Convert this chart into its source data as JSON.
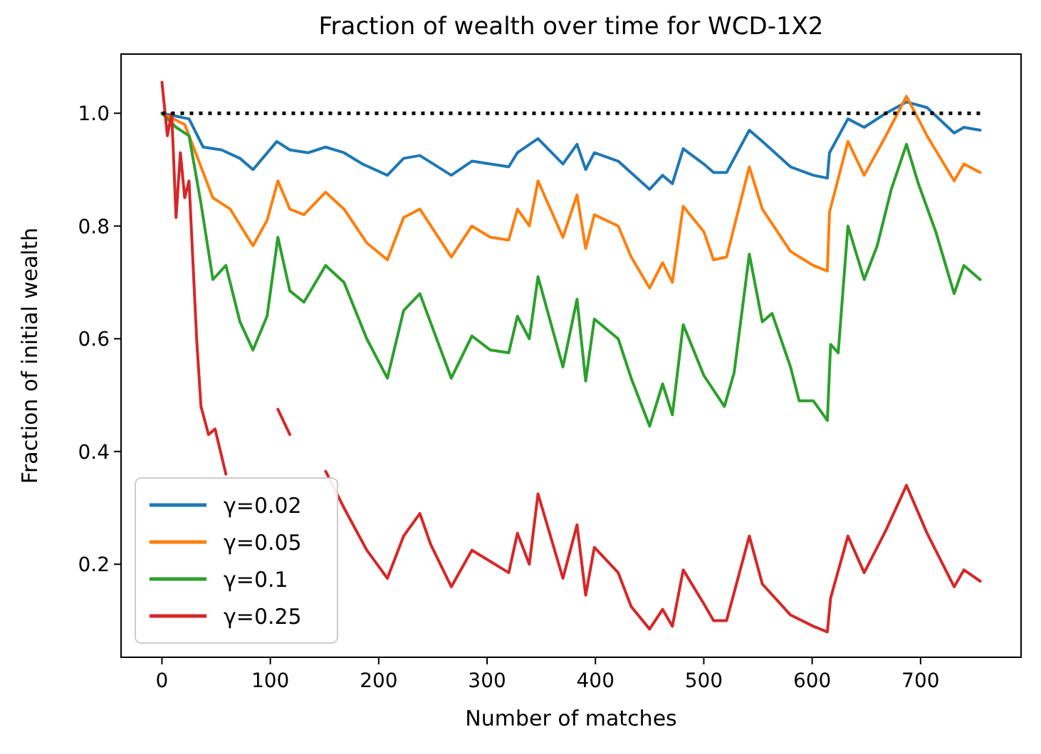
{
  "chart_data": {
    "type": "line",
    "title": "Fraction of wealth over time for WCD-1X2",
    "xlabel": "Number of matches",
    "ylabel": "Fraction of initial wealth",
    "xlim": [
      -37.75,
      792.75
    ],
    "xticks": [
      0,
      100,
      200,
      300,
      400,
      500,
      600,
      700
    ],
    "ylim": [
      0.035,
      1.105
    ],
    "yticks": [
      {
        "value": 0.2,
        "label": "0.2"
      },
      {
        "value": 0.4,
        "label": "0.4"
      },
      {
        "value": 0.6,
        "label": "0.6"
      },
      {
        "value": 0.8,
        "label": "0.8"
      },
      {
        "value": 1.0,
        "label": "1.0"
      }
    ],
    "grid": false,
    "legend": "bottom left",
    "line_style": "solid",
    "marker": "none",
    "series": [
      {
        "name": "γ=0.02",
        "color": "#1f77b4",
        "x": [
          0,
          25,
          38,
          55,
          72,
          84,
          106,
          118,
          135,
          151,
          168,
          185,
          208,
          223,
          238,
          267,
          286,
          320,
          328,
          347,
          370,
          383,
          391,
          399,
          421,
          450,
          462,
          471,
          481,
          500,
          509,
          521,
          542,
          554,
          580,
          601,
          614,
          616,
          633,
          648,
          668,
          687,
          706,
          731,
          740,
          755
        ],
        "values": [
          1.0,
          0.99,
          0.94,
          0.935,
          0.92,
          0.9,
          0.95,
          0.935,
          0.93,
          0.94,
          0.93,
          0.91,
          0.89,
          0.92,
          0.925,
          0.89,
          0.915,
          0.905,
          0.93,
          0.955,
          0.91,
          0.945,
          0.9,
          0.93,
          0.915,
          0.865,
          0.89,
          0.875,
          0.937,
          0.91,
          0.895,
          0.895,
          0.97,
          0.95,
          0.905,
          0.89,
          0.885,
          0.93,
          0.99,
          0.975,
          1.0,
          1.02,
          1.01,
          0.965,
          0.975,
          0.97
        ]
      },
      {
        "name": "γ=0.05",
        "color": "#ff7f0e",
        "x": [
          0,
          21,
          34,
          47,
          63,
          84,
          97,
          107,
          118,
          131,
          151,
          168,
          189,
          208,
          223,
          238,
          267,
          286,
          303,
          320,
          328,
          339,
          347,
          370,
          383,
          391,
          399,
          421,
          433,
          450,
          462,
          471,
          481,
          500,
          509,
          521,
          542,
          554,
          580,
          601,
          614,
          616,
          633,
          648,
          668,
          687,
          706,
          731,
          740,
          755
        ],
        "values": [
          1.0,
          0.98,
          0.915,
          0.85,
          0.83,
          0.765,
          0.81,
          0.88,
          0.83,
          0.82,
          0.86,
          0.83,
          0.77,
          0.74,
          0.815,
          0.83,
          0.745,
          0.8,
          0.78,
          0.775,
          0.83,
          0.8,
          0.88,
          0.78,
          0.855,
          0.76,
          0.82,
          0.8,
          0.745,
          0.69,
          0.735,
          0.7,
          0.835,
          0.79,
          0.74,
          0.745,
          0.905,
          0.83,
          0.755,
          0.73,
          0.72,
          0.825,
          0.95,
          0.89,
          0.96,
          1.03,
          0.96,
          0.88,
          0.91,
          0.895
        ]
      },
      {
        "name": "γ=0.1",
        "color": "#2ca02c",
        "x": [
          0,
          13,
          25,
          36,
          47,
          59,
          72,
          84,
          97,
          107,
          118,
          131,
          151,
          168,
          189,
          208,
          223,
          238,
          267,
          286,
          303,
          320,
          328,
          339,
          347,
          370,
          383,
          391,
          399,
          421,
          433,
          450,
          462,
          471,
          481,
          500,
          519,
          528,
          542,
          554,
          563,
          580,
          588,
          601,
          614,
          617,
          624,
          633,
          648,
          660,
          673,
          687,
          698,
          714,
          731,
          740,
          755
        ],
        "values": [
          1.0,
          0.975,
          0.96,
          0.84,
          0.705,
          0.73,
          0.63,
          0.58,
          0.64,
          0.78,
          0.685,
          0.665,
          0.73,
          0.7,
          0.6,
          0.53,
          0.65,
          0.68,
          0.53,
          0.605,
          0.58,
          0.575,
          0.64,
          0.6,
          0.71,
          0.55,
          0.67,
          0.525,
          0.635,
          0.6,
          0.53,
          0.445,
          0.52,
          0.465,
          0.625,
          0.535,
          0.48,
          0.54,
          0.75,
          0.63,
          0.645,
          0.55,
          0.49,
          0.49,
          0.455,
          0.59,
          0.575,
          0.8,
          0.705,
          0.765,
          0.865,
          0.945,
          0.875,
          0.79,
          0.68,
          0.73,
          0.705
        ]
      },
      {
        "name": "γ=0.25",
        "color": "#d62728",
        "x": [
          0,
          5,
          9,
          13,
          17,
          21,
          25,
          32,
          36,
          43,
          49,
          59,
          76,
          107,
          118,
          131,
          151,
          168,
          189,
          208,
          223,
          238,
          248,
          267,
          286,
          303,
          320,
          328,
          339,
          347,
          370,
          383,
          391,
          399,
          421,
          433,
          450,
          462,
          471,
          481,
          500,
          509,
          521,
          542,
          554,
          580,
          601,
          614,
          617,
          633,
          648,
          668,
          687,
          706,
          731,
          740,
          755
        ],
        "values": [
          1.055,
          0.96,
          1.0,
          0.815,
          0.93,
          0.85,
          0.88,
          0.6,
          0.48,
          0.43,
          0.44,
          0.36,
          null,
          0.475,
          0.43,
          null,
          0.365,
          0.3,
          0.225,
          0.175,
          0.25,
          0.29,
          0.235,
          0.16,
          0.225,
          0.205,
          0.185,
          0.255,
          0.2,
          0.325,
          0.175,
          0.27,
          0.145,
          0.23,
          0.185,
          0.125,
          0.085,
          0.12,
          0.09,
          0.19,
          0.13,
          0.1,
          0.1,
          0.25,
          0.165,
          0.11,
          0.09,
          0.08,
          0.14,
          0.25,
          0.185,
          0.26,
          0.34,
          0.255,
          0.16,
          0.19,
          0.17
        ]
      },
      {
        "color": "#000000",
        "line_style": "dotted",
        "x": [
          0,
          755
        ],
        "values": [
          1.0,
          1.0
        ]
      }
    ]
  }
}
